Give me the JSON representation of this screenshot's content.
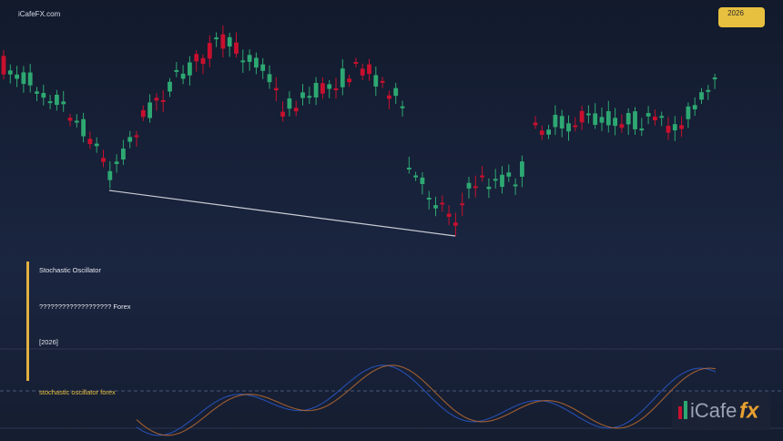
{
  "header": {
    "site": "iCafeFX.com",
    "badge": "2026"
  },
  "caption": {
    "title": "Stochastic Oscillator",
    "subtitle": "??????????????????? Forex",
    "year": "[2026]",
    "tag": "stochastic oscillator forex"
  },
  "logo": {
    "brand": "iCafe",
    "accent": "fx"
  }
}
